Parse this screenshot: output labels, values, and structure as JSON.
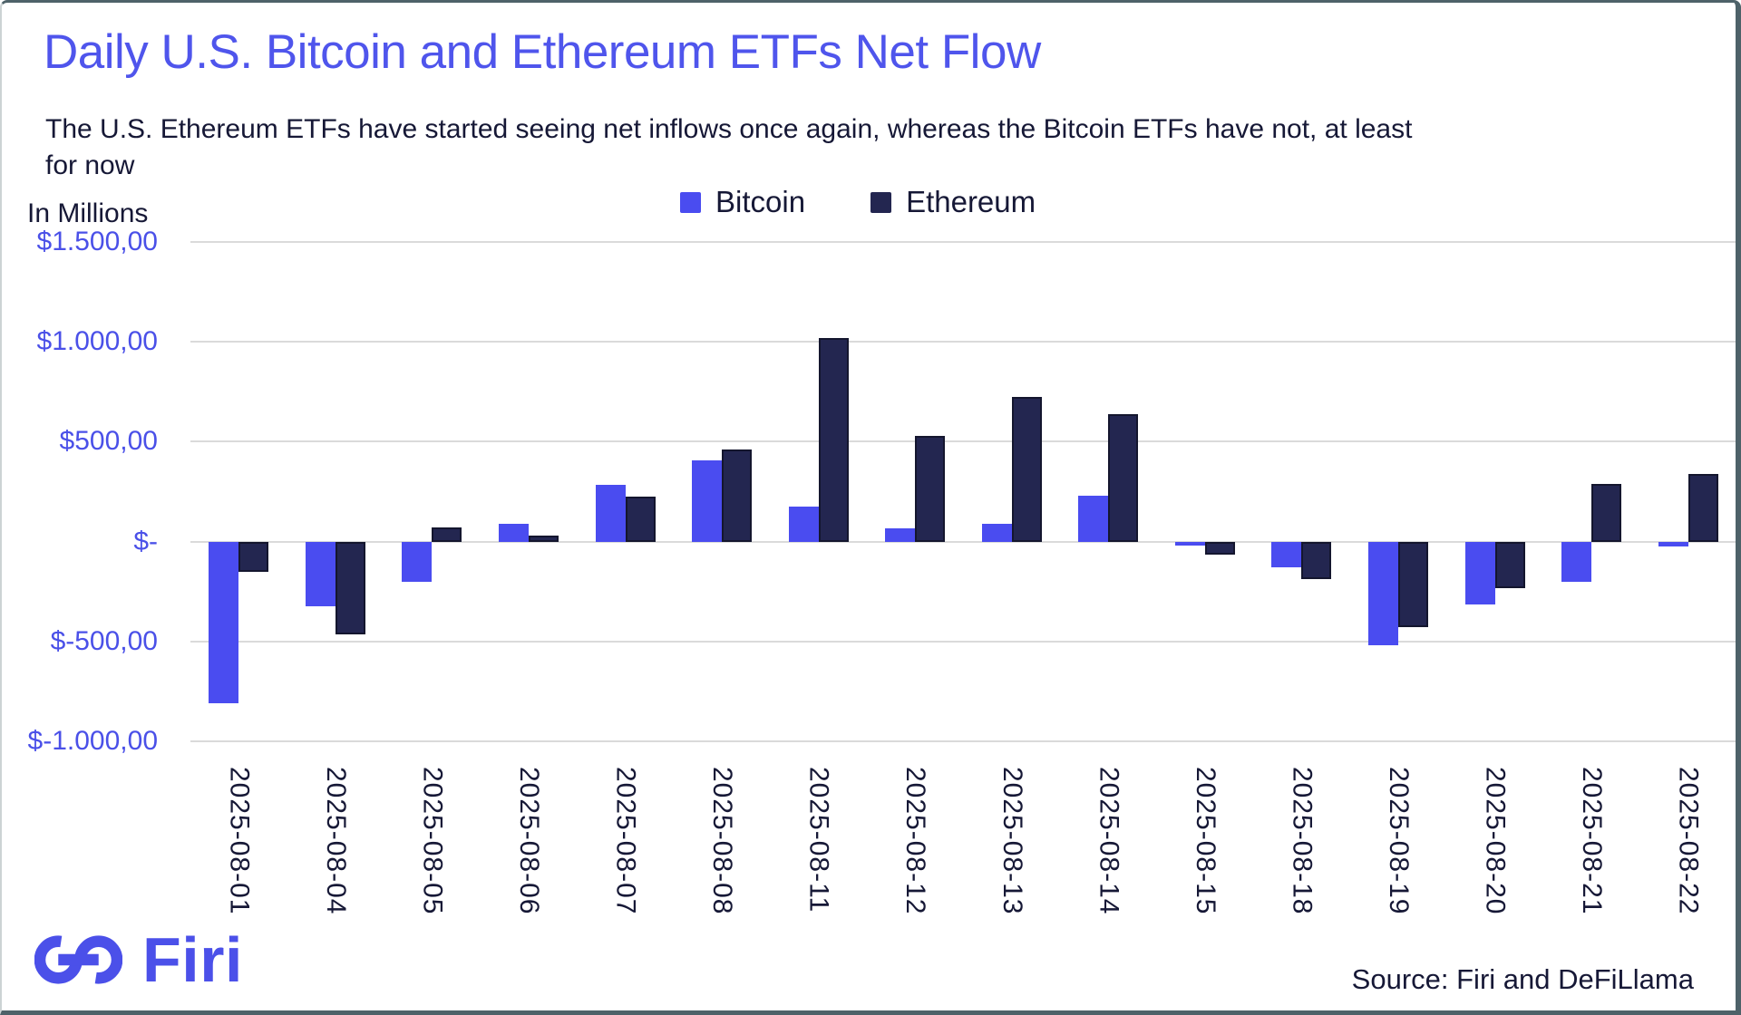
{
  "header": {
    "title": "Daily U.S. Bitcoin and Ethereum ETFs Net Flow",
    "subtitle_line1": "The U.S. Ethereum ETFs have started seeing net inflows once again, whereas the Bitcoin ETFs have not, at least",
    "subtitle_line2": "for now",
    "axis_unit_label": "In Millions"
  },
  "legend": {
    "items": [
      {
        "label": "Bitcoin",
        "color": "#4a4cf0"
      },
      {
        "label": "Ethereum",
        "color": "#232650"
      }
    ],
    "position": "top-center"
  },
  "footer": {
    "logo_text": "Firi",
    "source_text": "Source: Firi and DeFiLlama"
  },
  "colors": {
    "title": "#4f55ec",
    "y_axis_labels": "#4a50e8",
    "dark_text": "#161836",
    "gridline": "#dadada",
    "bitcoin_bar": "#4a4cf0",
    "ethereum_bar": "#232650",
    "ethereum_bar_border": "#14162e",
    "frame_border": "#4e6269"
  },
  "chart_data": {
    "type": "bar",
    "title": "Daily U.S. Bitcoin and Ethereum ETFs Net Flow",
    "unit": "USD millions",
    "grid": "horizontal",
    "legend_position": "top-center",
    "categories": [
      "2025-08-01",
      "2025-08-04",
      "2025-08-05",
      "2025-08-06",
      "2025-08-07",
      "2025-08-08",
      "2025-08-11",
      "2025-08-12",
      "2025-08-13",
      "2025-08-14",
      "2025-08-15",
      "2025-08-18",
      "2025-08-19",
      "2025-08-20",
      "2025-08-21",
      "2025-08-22"
    ],
    "series": [
      {
        "name": "Bitcoin",
        "color": "#4a4cf0",
        "values": [
          -810,
          -325,
          -200,
          90,
          285,
          405,
          175,
          65,
          90,
          230,
          -20,
          -130,
          -520,
          -315,
          -200,
          -25
        ]
      },
      {
        "name": "Ethereum",
        "color": "#232650",
        "values": [
          -150,
          -465,
          70,
          30,
          225,
          460,
          1020,
          530,
          725,
          640,
          -65,
          -190,
          -430,
          -235,
          290,
          340
        ]
      }
    ],
    "y_axis": {
      "min": -1000,
      "max": 1500,
      "ticks": [
        {
          "label": "$1.500,00",
          "value": 1500
        },
        {
          "label": "$1.000,00",
          "value": 1000
        },
        {
          "label": "$500,00",
          "value": 500
        },
        {
          "label": "$-",
          "value": 0
        },
        {
          "label": "$-500,00",
          "value": -500
        },
        {
          "label": "$-1.000,00",
          "value": -1000
        }
      ]
    }
  }
}
